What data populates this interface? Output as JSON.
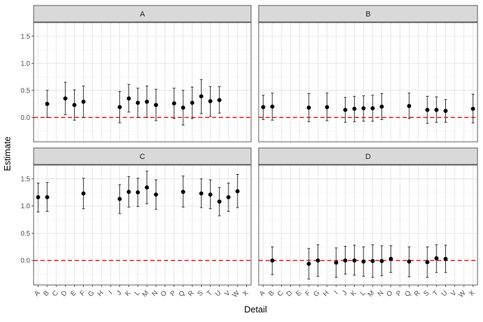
{
  "chart_data": {
    "type": "scatter",
    "xlabel": "Detail",
    "ylabel": "Estimate",
    "ylim": [
      -0.45,
      1.75
    ],
    "y_ticks": [
      0.0,
      0.5,
      1.0,
      1.5
    ],
    "y_tick_labels": [
      "0.0",
      "0.5",
      "1.0",
      "1.5"
    ],
    "categories": [
      "A",
      "B",
      "C",
      "D",
      "E",
      "F",
      "G",
      "H",
      "I",
      "J",
      "K",
      "L",
      "M",
      "N",
      "O",
      "P",
      "Q",
      "R",
      "S",
      "T",
      "U",
      "V",
      "W",
      "X"
    ],
    "reference_line": {
      "y": 0,
      "style": "dashed",
      "color": "#ff0000"
    },
    "error_bars": true,
    "grid": true,
    "panels": [
      {
        "label": "A",
        "points": [
          {
            "x": "B",
            "y": 0.25,
            "lo": 0.0,
            "hi": 0.5
          },
          {
            "x": "D",
            "y": 0.35,
            "lo": 0.05,
            "hi": 0.65
          },
          {
            "x": "E",
            "y": 0.23,
            "lo": -0.05,
            "hi": 0.51
          },
          {
            "x": "F",
            "y": 0.29,
            "lo": 0.0,
            "hi": 0.58
          },
          {
            "x": "J",
            "y": 0.19,
            "lo": -0.1,
            "hi": 0.48
          },
          {
            "x": "K",
            "y": 0.35,
            "lo": 0.1,
            "hi": 0.61
          },
          {
            "x": "L",
            "y": 0.27,
            "lo": 0.0,
            "hi": 0.54
          },
          {
            "x": "M",
            "y": 0.29,
            "lo": 0.0,
            "hi": 0.58
          },
          {
            "x": "N",
            "y": 0.23,
            "lo": -0.06,
            "hi": 0.52
          },
          {
            "x": "P",
            "y": 0.26,
            "lo": -0.02,
            "hi": 0.54
          },
          {
            "x": "Q",
            "y": 0.18,
            "lo": -0.14,
            "hi": 0.5
          },
          {
            "x": "R",
            "y": 0.27,
            "lo": -0.02,
            "hi": 0.56
          },
          {
            "x": "S",
            "y": 0.39,
            "lo": 0.07,
            "hi": 0.7
          },
          {
            "x": "T",
            "y": 0.3,
            "lo": 0.02,
            "hi": 0.57
          },
          {
            "x": "U",
            "y": 0.32,
            "lo": 0.08,
            "hi": 0.57
          }
        ]
      },
      {
        "label": "B",
        "points": [
          {
            "x": "A",
            "y": 0.19,
            "lo": -0.04,
            "hi": 0.41
          },
          {
            "x": "B",
            "y": 0.2,
            "lo": -0.05,
            "hi": 0.45
          },
          {
            "x": "F",
            "y": 0.18,
            "lo": -0.08,
            "hi": 0.44
          },
          {
            "x": "H",
            "y": 0.19,
            "lo": -0.06,
            "hi": 0.45
          },
          {
            "x": "J",
            "y": 0.14,
            "lo": -0.09,
            "hi": 0.37
          },
          {
            "x": "K",
            "y": 0.16,
            "lo": -0.08,
            "hi": 0.39
          },
          {
            "x": "L",
            "y": 0.17,
            "lo": -0.07,
            "hi": 0.4
          },
          {
            "x": "M",
            "y": 0.17,
            "lo": -0.07,
            "hi": 0.41
          },
          {
            "x": "N",
            "y": 0.2,
            "lo": -0.04,
            "hi": 0.44
          },
          {
            "x": "Q",
            "y": 0.21,
            "lo": -0.02,
            "hi": 0.45
          },
          {
            "x": "S",
            "y": 0.14,
            "lo": -0.11,
            "hi": 0.39
          },
          {
            "x": "T",
            "y": 0.14,
            "lo": -0.09,
            "hi": 0.38
          },
          {
            "x": "U",
            "y": 0.12,
            "lo": -0.09,
            "hi": 0.33
          },
          {
            "x": "X",
            "y": 0.16,
            "lo": -0.1,
            "hi": 0.43
          }
        ]
      },
      {
        "label": "C",
        "points": [
          {
            "x": "A",
            "y": 1.16,
            "lo": 0.89,
            "hi": 1.42
          },
          {
            "x": "B",
            "y": 1.16,
            "lo": 0.9,
            "hi": 1.43
          },
          {
            "x": "F",
            "y": 1.23,
            "lo": 0.95,
            "hi": 1.51
          },
          {
            "x": "J",
            "y": 1.13,
            "lo": 0.86,
            "hi": 1.39
          },
          {
            "x": "K",
            "y": 1.26,
            "lo": 0.98,
            "hi": 1.54
          },
          {
            "x": "L",
            "y": 1.25,
            "lo": 0.99,
            "hi": 1.51
          },
          {
            "x": "M",
            "y": 1.34,
            "lo": 1.04,
            "hi": 1.64
          },
          {
            "x": "N",
            "y": 1.21,
            "lo": 0.94,
            "hi": 1.48
          },
          {
            "x": "Q",
            "y": 1.26,
            "lo": 0.98,
            "hi": 1.55
          },
          {
            "x": "S",
            "y": 1.23,
            "lo": 0.97,
            "hi": 1.5
          },
          {
            "x": "T",
            "y": 1.21,
            "lo": 0.95,
            "hi": 1.48
          },
          {
            "x": "U",
            "y": 1.08,
            "lo": 0.82,
            "hi": 1.34
          },
          {
            "x": "V",
            "y": 1.16,
            "lo": 0.9,
            "hi": 1.42
          },
          {
            "x": "W",
            "y": 1.27,
            "lo": 0.97,
            "hi": 1.58
          }
        ]
      },
      {
        "label": "D",
        "points": [
          {
            "x": "B",
            "y": 0.0,
            "lo": -0.26,
            "hi": 0.25
          },
          {
            "x": "F",
            "y": -0.06,
            "lo": -0.34,
            "hi": 0.22
          },
          {
            "x": "G",
            "y": 0.0,
            "lo": -0.29,
            "hi": 0.29
          },
          {
            "x": "I",
            "y": -0.04,
            "lo": -0.31,
            "hi": 0.23
          },
          {
            "x": "J",
            "y": 0.0,
            "lo": -0.25,
            "hi": 0.26
          },
          {
            "x": "K",
            "y": 0.0,
            "lo": -0.27,
            "hi": 0.28
          },
          {
            "x": "L",
            "y": -0.02,
            "lo": -0.29,
            "hi": 0.25
          },
          {
            "x": "M",
            "y": -0.01,
            "lo": -0.31,
            "hi": 0.29
          },
          {
            "x": "N",
            "y": -0.01,
            "lo": -0.28,
            "hi": 0.27
          },
          {
            "x": "O",
            "y": 0.03,
            "lo": -0.22,
            "hi": 0.27
          },
          {
            "x": "Q",
            "y": -0.02,
            "lo": -0.3,
            "hi": 0.25
          },
          {
            "x": "S",
            "y": -0.03,
            "lo": -0.31,
            "hi": 0.25
          },
          {
            "x": "T",
            "y": 0.04,
            "lo": -0.22,
            "hi": 0.29
          },
          {
            "x": "U",
            "y": 0.03,
            "lo": -0.22,
            "hi": 0.28
          }
        ]
      }
    ]
  }
}
